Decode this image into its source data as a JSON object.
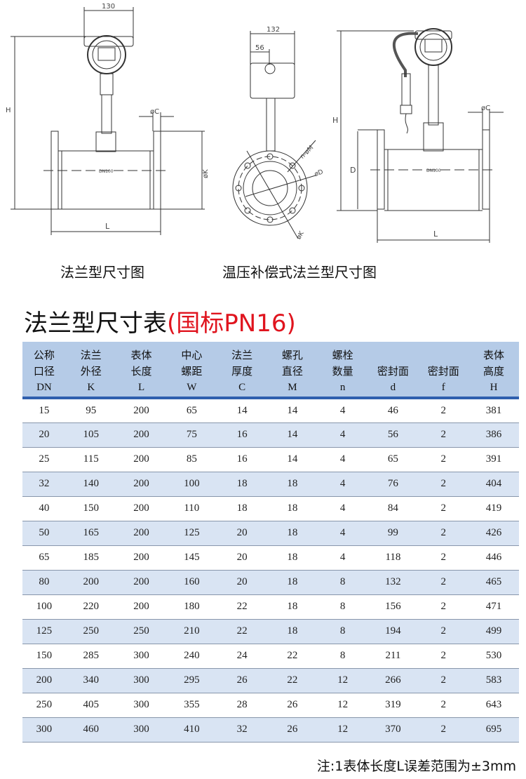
{
  "drawings": {
    "left": {
      "caption": "法兰型尺寸图",
      "dim_width": "130",
      "dim_height": "H",
      "dim_flange_thickness": "øC",
      "dim_flange_od": "øK",
      "dim_length": "L",
      "pipe_label": "DN100"
    },
    "middle": {
      "dim_width": "132",
      "dim_offset": "56",
      "dim_bolt_holes": "n-øM",
      "dim_seal": "øD",
      "dim_flange_od": "øK"
    },
    "right": {
      "caption": "温压补偿式法兰型尺寸图",
      "dim_height": "H",
      "dim_flange_height": "D",
      "dim_flange_thickness": "øC",
      "dim_length": "L",
      "pipe_label": "DN100"
    }
  },
  "table": {
    "title": "法兰型尺寸表",
    "title_highlight": "(国标PN16)",
    "highlight_color": "#e0141e",
    "header_color": "#b5cbe7",
    "stripe_color": "#d9e4f3",
    "columns": [
      {
        "l1": "公称",
        "l2": "口径",
        "code": "DN"
      },
      {
        "l1": "法兰",
        "l2": "外径",
        "code": "K"
      },
      {
        "l1": "表体",
        "l2": "长度",
        "code": "L"
      },
      {
        "l1": "中心",
        "l2": "螺距",
        "code": "W"
      },
      {
        "l1": "法兰",
        "l2": "厚度",
        "code": "C"
      },
      {
        "l1": "螺孔",
        "l2": "直径",
        "code": "M"
      },
      {
        "l1": "螺栓",
        "l2": "数量",
        "code": "n"
      },
      {
        "l1": "",
        "l2": "密封面",
        "code": "d"
      },
      {
        "l1": "",
        "l2": "密封面",
        "code": "f"
      },
      {
        "l1": "表体",
        "l2": "高度",
        "code": "H"
      }
    ],
    "rows": [
      [
        "15",
        "95",
        "200",
        "65",
        "14",
        "14",
        "4",
        "46",
        "2",
        "381"
      ],
      [
        "20",
        "105",
        "200",
        "75",
        "16",
        "14",
        "4",
        "56",
        "2",
        "386"
      ],
      [
        "25",
        "115",
        "200",
        "85",
        "16",
        "14",
        "4",
        "65",
        "2",
        "391"
      ],
      [
        "32",
        "140",
        "200",
        "100",
        "18",
        "18",
        "4",
        "76",
        "2",
        "404"
      ],
      [
        "40",
        "150",
        "200",
        "110",
        "18",
        "18",
        "4",
        "84",
        "2",
        "419"
      ],
      [
        "50",
        "165",
        "200",
        "125",
        "20",
        "18",
        "4",
        "99",
        "2",
        "426"
      ],
      [
        "65",
        "185",
        "200",
        "145",
        "20",
        "18",
        "4",
        "118",
        "2",
        "446"
      ],
      [
        "80",
        "200",
        "200",
        "160",
        "20",
        "18",
        "8",
        "132",
        "2",
        "465"
      ],
      [
        "100",
        "220",
        "200",
        "180",
        "22",
        "18",
        "8",
        "156",
        "2",
        "471"
      ],
      [
        "125",
        "250",
        "250",
        "210",
        "22",
        "18",
        "8",
        "194",
        "2",
        "499"
      ],
      [
        "150",
        "285",
        "300",
        "240",
        "24",
        "22",
        "8",
        "211",
        "2",
        "530"
      ],
      [
        "200",
        "340",
        "300",
        "295",
        "26",
        "22",
        "12",
        "266",
        "2",
        "583"
      ],
      [
        "250",
        "405",
        "300",
        "355",
        "28",
        "26",
        "12",
        "319",
        "2",
        "643"
      ],
      [
        "300",
        "460",
        "300",
        "410",
        "32",
        "26",
        "12",
        "370",
        "2",
        "695"
      ]
    ]
  },
  "note": "注:1表体长度L误差范围为±3mm"
}
